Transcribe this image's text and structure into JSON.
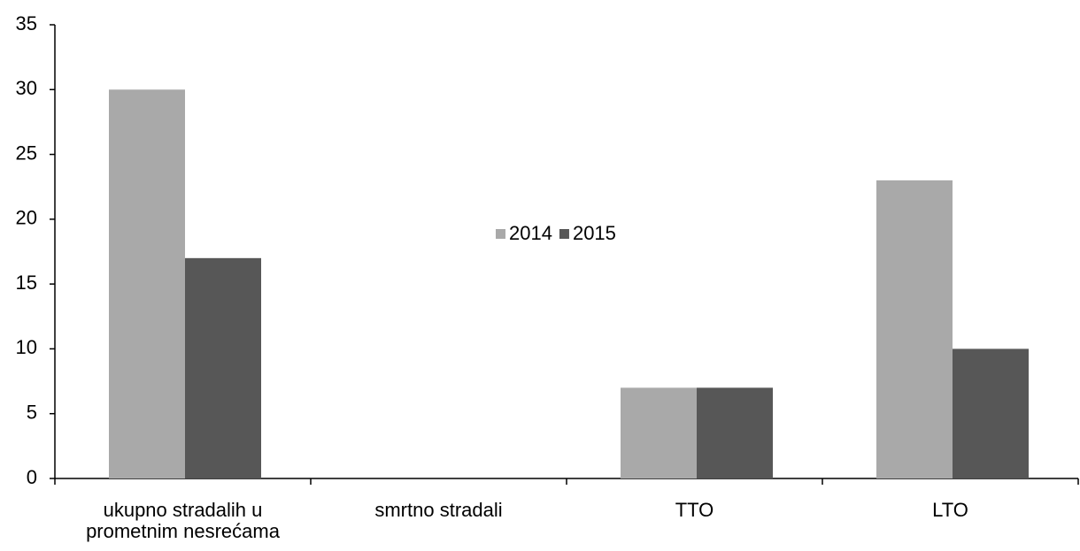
{
  "chart_data": {
    "type": "bar",
    "categories": [
      "ukupno stradalih u prometnim nesrećama",
      "smrtno stradali",
      "TTO",
      "LTO"
    ],
    "series": [
      {
        "name": "2014",
        "color": "#a9a9a9",
        "values": [
          30,
          0,
          7,
          23
        ]
      },
      {
        "name": "2015",
        "color": "#575757",
        "values": [
          17,
          0,
          7,
          10
        ]
      }
    ],
    "ylim": [
      0,
      35
    ],
    "yticks": [
      0,
      5,
      10,
      15,
      20,
      25,
      30,
      35
    ],
    "grid": false,
    "legend": "center"
  }
}
